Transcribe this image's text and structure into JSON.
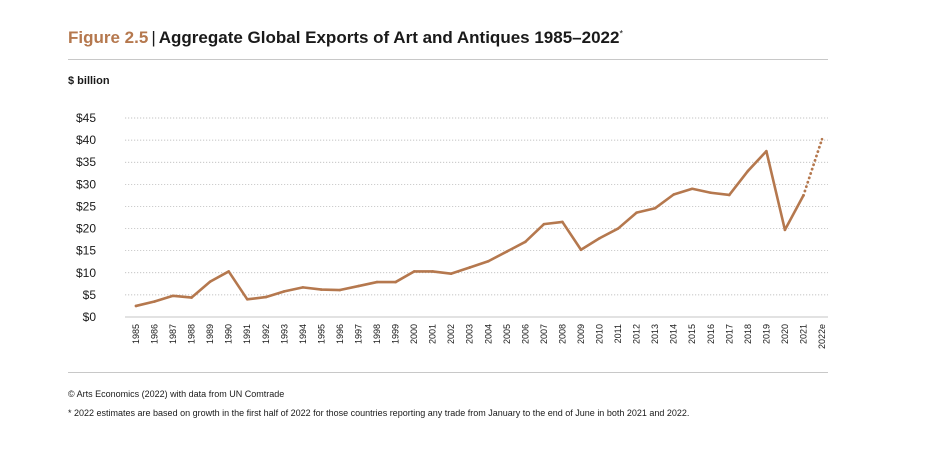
{
  "figure": {
    "label": "Figure 2.5",
    "separator": "|",
    "title": "Aggregate Global Exports of Art and Antiques 1985–2022",
    "title_marker": "*"
  },
  "unit_label": "$ billion",
  "chart_data": {
    "type": "line",
    "title": "Aggregate Global Exports of Art and Antiques 1985–2022",
    "ylabel": "$ billion",
    "xlabel": "",
    "ylim": [
      0,
      45
    ],
    "yticks": [
      0,
      5,
      10,
      15,
      20,
      25,
      30,
      35,
      40,
      45
    ],
    "ytick_labels": [
      "$0",
      "$5",
      "$10",
      "$15",
      "$20",
      "$25",
      "$30",
      "$35",
      "$40",
      "$45"
    ],
    "grid": true,
    "categories": [
      "1985",
      "1986",
      "1987",
      "1988",
      "1989",
      "1990",
      "1991",
      "1992",
      "1993",
      "1994",
      "1995",
      "1996",
      "1997",
      "1998",
      "1999",
      "2000",
      "2001",
      "2002",
      "2003",
      "2004",
      "2005",
      "2006",
      "2007",
      "2008",
      "2009",
      "2010",
      "2011",
      "2012",
      "2013",
      "2014",
      "2015",
      "2016",
      "2017",
      "2018",
      "2019",
      "2020",
      "2021",
      "2022e"
    ],
    "series": [
      {
        "name": "Aggregate global exports",
        "color": "#b5784e",
        "values": [
          2.5,
          3.5,
          4.8,
          4.4,
          8.0,
          10.3,
          4.0,
          4.5,
          5.8,
          6.7,
          6.2,
          6.1,
          7.0,
          7.9,
          7.9,
          10.3,
          10.3,
          9.8,
          11.2,
          12.6,
          14.8,
          17.0,
          21.0,
          21.5,
          15.2,
          17.8,
          20.0,
          23.6,
          24.6,
          27.7,
          29.0,
          28.1,
          27.6,
          33.0,
          37.5,
          19.7,
          27.5,
          40.2
        ],
        "estimate_from_index": 36,
        "estimate_style": "dotted"
      }
    ]
  },
  "footnotes": {
    "source": "© Arts Economics (2022) with data from UN Comtrade",
    "note": "*  2022 estimates are based on growth in the first half of 2022 for those countries reporting any trade from January to the end of June in both 2021 and 2022."
  },
  "colors": {
    "accent": "#b5784e",
    "grid": "#b0b0b0",
    "text": "#1a1a1a",
    "rule": "#c8c8c8"
  }
}
